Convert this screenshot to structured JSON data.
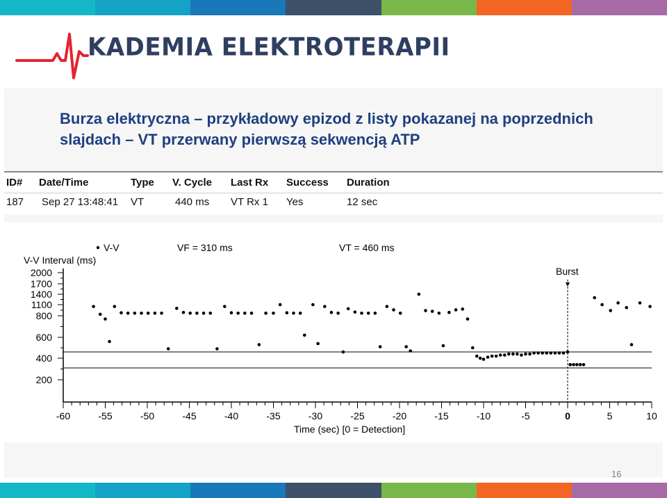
{
  "palette": [
    "#14b7c6",
    "#12a3c6",
    "#1978b9",
    "#3d506a",
    "#7ab74a",
    "#f26522",
    "#a66aa7"
  ],
  "logo": {
    "text": "KADEMIA ELEKTROTERAPII",
    "pulse_color": "#e52331",
    "text_color": "#2e3f60"
  },
  "title": {
    "line1": "Burza elektryczna – przykładowy epizod z listy pokazanej na poprzednich",
    "line2": "slajdach – VT przerwany pierwszą sekwencją ATP"
  },
  "episode_table": {
    "headers": [
      "ID#",
      "Date/Time",
      "Type",
      "V. Cycle",
      "Last Rx",
      "Success",
      "Duration"
    ],
    "row": [
      "187",
      "Sep 27 13:48:41",
      "VT",
      "440 ms",
      "VT Rx 1",
      "Yes",
      "12 sec"
    ]
  },
  "chart_data": {
    "type": "scatter",
    "legend": "V-V",
    "ylabel": "V-V Interval (ms)",
    "xlabel": "Time (sec)    [0 = Detection]",
    "x_ticks": [
      -60,
      -55,
      -50,
      -45,
      -40,
      -35,
      -30,
      -25,
      -20,
      -15,
      -10,
      -5,
      0,
      5,
      10
    ],
    "x_tick_labels": [
      "-60",
      "-55",
      "-50",
      "-45",
      "-40",
      "-35",
      "-30",
      "-25",
      "-20",
      "-15",
      "-10",
      "-5",
      "0",
      "5",
      "10"
    ],
    "y_ticks": [
      200,
      400,
      600,
      800,
      1100,
      1400,
      1700,
      2000
    ],
    "y_tick_labels": [
      "200",
      "400",
      "600",
      "800",
      "1100",
      "1400",
      "1700",
      "2000"
    ],
    "xlim": [
      -60,
      10
    ],
    "zones": [
      {
        "label": "VF = 310 ms",
        "value": 310
      },
      {
        "label": "VT = 460 ms",
        "value": 460
      }
    ],
    "marker": {
      "label": "Burst",
      "x": 0
    },
    "points": [
      [
        -56.4,
        1050
      ],
      [
        -55.6,
        840
      ],
      [
        -55.0,
        770
      ],
      [
        -54.5,
        560
      ],
      [
        -53.9,
        1050
      ],
      [
        -53.1,
        880
      ],
      [
        -52.3,
        870
      ],
      [
        -51.5,
        870
      ],
      [
        -50.7,
        870
      ],
      [
        -49.9,
        870
      ],
      [
        -49.1,
        870
      ],
      [
        -48.3,
        870
      ],
      [
        -47.5,
        490
      ],
      [
        -46.5,
        1000
      ],
      [
        -45.7,
        890
      ],
      [
        -44.9,
        870
      ],
      [
        -44.1,
        870
      ],
      [
        -43.3,
        870
      ],
      [
        -42.5,
        870
      ],
      [
        -41.7,
        490
      ],
      [
        -40.8,
        1050
      ],
      [
        -40.0,
        880
      ],
      [
        -39.2,
        870
      ],
      [
        -38.4,
        870
      ],
      [
        -37.6,
        870
      ],
      [
        -36.7,
        530
      ],
      [
        -35.9,
        870
      ],
      [
        -35.0,
        870
      ],
      [
        -34.2,
        1100
      ],
      [
        -33.4,
        880
      ],
      [
        -32.6,
        870
      ],
      [
        -31.8,
        870
      ],
      [
        -31.3,
        620
      ],
      [
        -30.3,
        1100
      ],
      [
        -29.7,
        540
      ],
      [
        -28.9,
        1050
      ],
      [
        -28.1,
        890
      ],
      [
        -27.3,
        870
      ],
      [
        -26.7,
        460
      ],
      [
        -26.1,
        990
      ],
      [
        -25.3,
        900
      ],
      [
        -24.5,
        870
      ],
      [
        -23.7,
        870
      ],
      [
        -22.9,
        870
      ],
      [
        -22.3,
        510
      ],
      [
        -21.5,
        1050
      ],
      [
        -20.7,
        960
      ],
      [
        -19.9,
        870
      ],
      [
        -19.2,
        510
      ],
      [
        -18.7,
        470
      ],
      [
        -17.7,
        1400
      ],
      [
        -16.9,
        940
      ],
      [
        -16.1,
        920
      ],
      [
        -15.3,
        870
      ],
      [
        -14.8,
        520
      ],
      [
        -14.1,
        890
      ],
      [
        -13.3,
        960
      ],
      [
        -12.5,
        980
      ],
      [
        -11.9,
        770
      ],
      [
        -11.3,
        500
      ],
      [
        -10.8,
        420
      ],
      [
        -10.4,
        400
      ],
      [
        -10.0,
        390
      ],
      [
        -9.5,
        410
      ],
      [
        -9.0,
        420
      ],
      [
        -8.5,
        420
      ],
      [
        -8.0,
        430
      ],
      [
        -7.5,
        430
      ],
      [
        -7.0,
        440
      ],
      [
        -6.5,
        440
      ],
      [
        -6.0,
        440
      ],
      [
        -5.5,
        430
      ],
      [
        -5.0,
        440
      ],
      [
        -4.5,
        440
      ],
      [
        -4.0,
        450
      ],
      [
        -3.5,
        450
      ],
      [
        -3.0,
        450
      ],
      [
        -2.5,
        450
      ],
      [
        -2.0,
        450
      ],
      [
        -1.5,
        450
      ],
      [
        -1.0,
        450
      ],
      [
        -0.5,
        450
      ],
      [
        0.0,
        460
      ],
      [
        0.3,
        340
      ],
      [
        0.7,
        340
      ],
      [
        1.1,
        340
      ],
      [
        1.5,
        340
      ],
      [
        1.9,
        340
      ],
      [
        3.2,
        1300
      ],
      [
        4.1,
        1100
      ],
      [
        5.1,
        940
      ],
      [
        6.0,
        1150
      ],
      [
        7.0,
        1020
      ],
      [
        7.6,
        530
      ],
      [
        8.6,
        1150
      ],
      [
        9.8,
        1050
      ]
    ]
  }
}
